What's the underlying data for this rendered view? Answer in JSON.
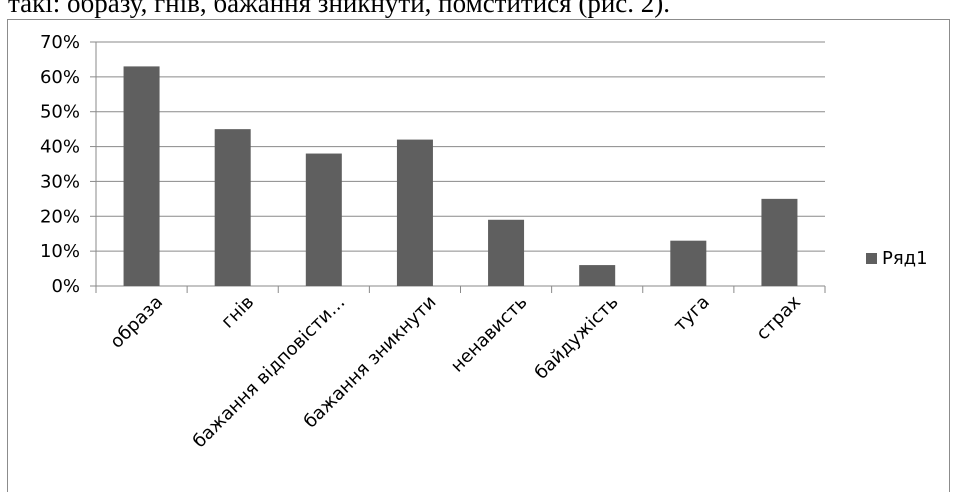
{
  "caption": "такі: образу, гнів, бажання зникнути, помститися (рис. 2).",
  "chart_data": {
    "type": "bar",
    "categories": [
      "образа",
      "гнів",
      "бажання відповісти…",
      "бажання зникнути",
      "ненависть",
      "байдужість",
      "туга",
      "страх"
    ],
    "series": [
      {
        "name": "Ряд1",
        "values": [
          0.63,
          0.45,
          0.38,
          0.42,
          0.19,
          0.06,
          0.13,
          0.25
        ]
      }
    ],
    "y_ticks": [
      "0%",
      "10%",
      "20%",
      "30%",
      "40%",
      "50%",
      "60%",
      "70%"
    ],
    "ylim": [
      0,
      0.7
    ],
    "grid": true,
    "legend_position": "right",
    "bar_color": "#5f5f5f"
  }
}
